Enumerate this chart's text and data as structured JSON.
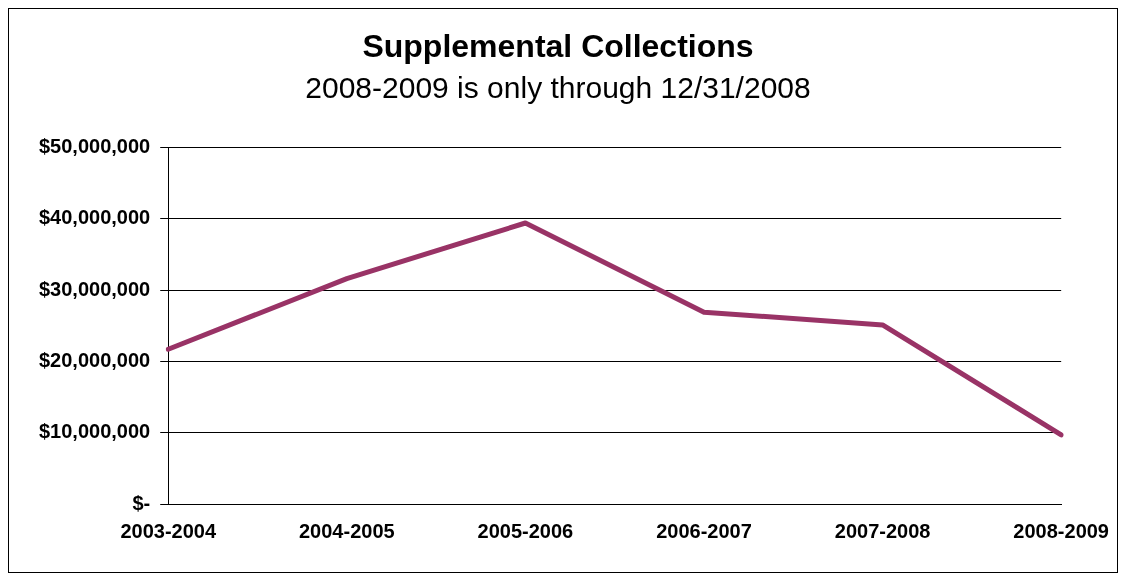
{
  "chart_data": {
    "type": "line",
    "title": "Supplemental Collections",
    "subtitle": "2008-2009 is only through 12/31/2008",
    "categories": [
      "2003-2004",
      "2004-2005",
      "2005-2006",
      "2006-2007",
      "2007-2008",
      "2008-2009"
    ],
    "series": [
      {
        "color": "#993366",
        "values": [
          21700000,
          31600000,
          39400000,
          26900000,
          25100000,
          9700000
        ]
      }
    ],
    "ylim": [
      0,
      50000000
    ],
    "yticks": [
      {
        "value": 0,
        "label": "$-"
      },
      {
        "value": 10000000,
        "label": "$10,000,000"
      },
      {
        "value": 20000000,
        "label": "$20,000,000"
      },
      {
        "value": 30000000,
        "label": "$30,000,000"
      },
      {
        "value": 40000000,
        "label": "$40,000,000"
      },
      {
        "value": 50000000,
        "label": "$50,000,000"
      }
    ],
    "grid": "y",
    "legend": false,
    "marker": "none",
    "line_style": "solid"
  }
}
